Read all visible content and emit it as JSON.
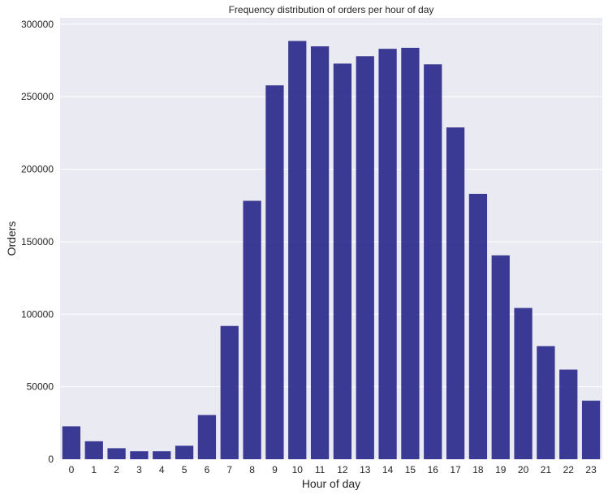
{
  "chart_data": {
    "type": "bar",
    "title": "Frequency distribution of orders per hour of day",
    "xlabel": "Hour of day",
    "ylabel": "Orders",
    "categories": [
      "0",
      "1",
      "2",
      "3",
      "4",
      "5",
      "6",
      "7",
      "8",
      "9",
      "10",
      "11",
      "12",
      "13",
      "14",
      "15",
      "16",
      "17",
      "18",
      "19",
      "20",
      "21",
      "22",
      "23"
    ],
    "values": [
      22700,
      12400,
      7600,
      5500,
      5500,
      9300,
      30500,
      91900,
      178200,
      257800,
      288400,
      284700,
      272800,
      277900,
      283000,
      283700,
      272300,
      228800,
      183000,
      140600,
      104300,
      78000,
      61800,
      40400
    ],
    "ylim": [
      0,
      300000
    ],
    "yticks": [
      0,
      50000,
      100000,
      150000,
      200000,
      250000,
      300000
    ],
    "ytick_labels": [
      "0",
      "50000",
      "100000",
      "150000",
      "200000",
      "250000",
      "300000"
    ],
    "grid": true,
    "bar_color": "#27278a",
    "plot_background": "#eaeaf2",
    "grid_color": "#ffffff"
  }
}
